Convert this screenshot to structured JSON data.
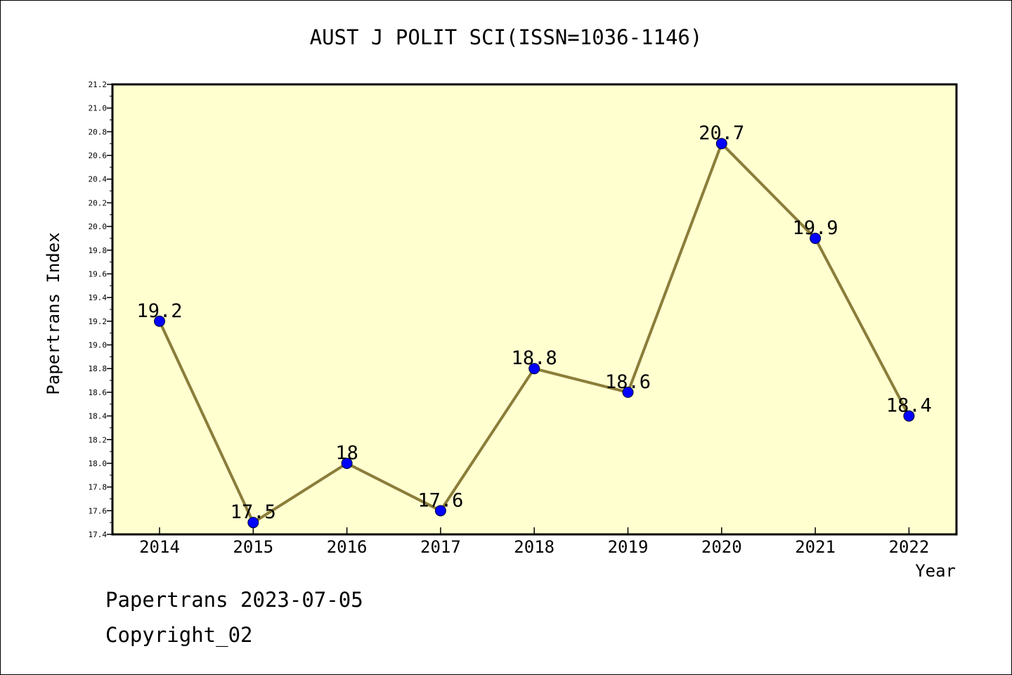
{
  "chart_data": {
    "type": "line",
    "title": "AUST J POLIT SCI(ISSN=1036-1146)",
    "xlabel": "Year",
    "ylabel": "Papertrans Index",
    "categories": [
      "2014",
      "2015",
      "2016",
      "2017",
      "2018",
      "2019",
      "2020",
      "2021",
      "2022"
    ],
    "series": [
      {
        "values": [
          19.2,
          17.5,
          18.0,
          17.6,
          18.8,
          18.6,
          20.7,
          19.9,
          18.4
        ],
        "point_labels": [
          "19.2",
          "17.5",
          "18",
          "17.6",
          "18.8",
          "18.6",
          "20.7",
          "19.9",
          "18.4"
        ]
      }
    ],
    "ylim": [
      17.4,
      21.2
    ],
    "yticks": [
      "17.4",
      "17.6",
      "17.8",
      "18.0",
      "18.2",
      "18.4",
      "18.6",
      "18.8",
      "19.0",
      "19.2",
      "19.4",
      "19.6",
      "19.8",
      "20.0",
      "20.2",
      "20.4",
      "20.6",
      "20.8",
      "21.0",
      "21.2"
    ],
    "grid": false,
    "legend": "none",
    "colors": {
      "plot_background": "#ffffd0",
      "line": "#8b7d3a",
      "marker": "#0000ff"
    }
  },
  "footer": {
    "date_line": "Papertrans 2023-07-05",
    "copyright": "Copyright_02"
  }
}
